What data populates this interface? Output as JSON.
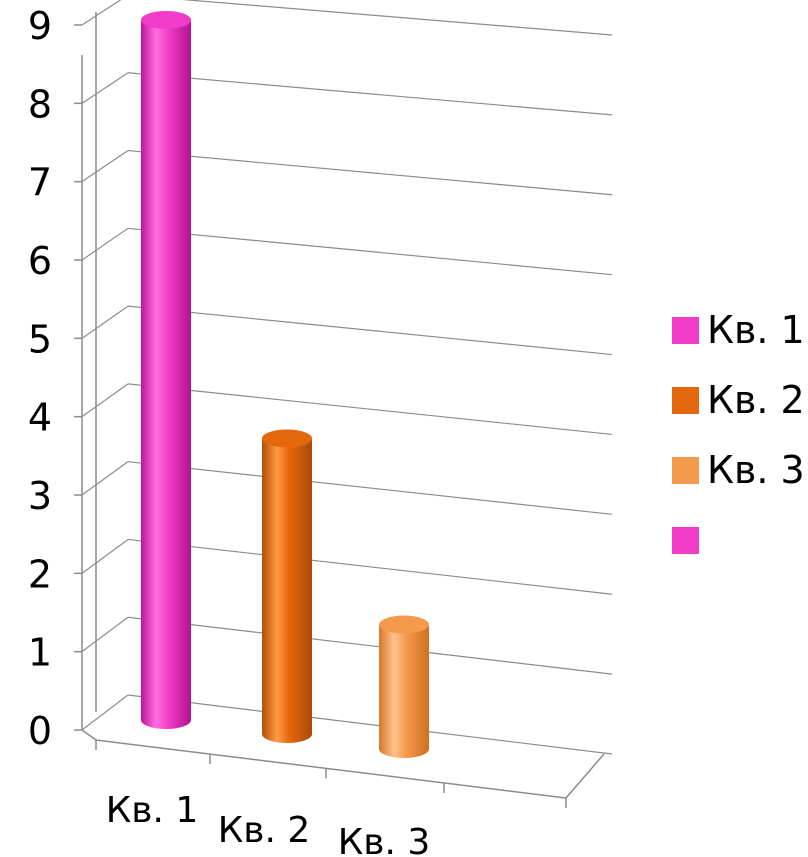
{
  "chart_data": {
    "type": "bar",
    "style": "3d-cylinder",
    "categories": [
      "Кв. 1",
      "Кв. 2",
      "Кв. 3"
    ],
    "values": [
      9.0,
      3.8,
      1.6
    ],
    "colors": [
      "#f03cc8",
      "#e4670e",
      "#f49a4c"
    ],
    "ylim": [
      0,
      9
    ],
    "yticks": [
      "0",
      "1",
      "2",
      "3",
      "4",
      "5",
      "6",
      "7",
      "8",
      "9"
    ],
    "grid": true,
    "legend_position": "right",
    "legend": [
      {
        "label": "Кв. 1",
        "color": "#f03cc8"
      },
      {
        "label": "Кв. 2",
        "color": "#e4670e"
      },
      {
        "label": "Кв. 3",
        "color": "#f49a4c"
      },
      {
        "label": "",
        "color": "#f03cc8"
      }
    ]
  }
}
